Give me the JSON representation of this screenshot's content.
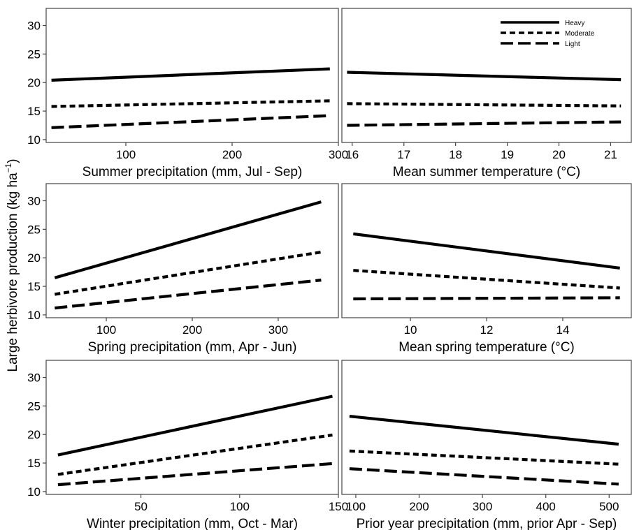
{
  "figure": {
    "ylabel_main": "Large herbivore production (kg ha",
    "ylabel_sup": "−1",
    "ylabel_close": ")"
  },
  "legend": {
    "placement": "top-right",
    "entries": [
      {
        "label": "Heavy",
        "style": "solid"
      },
      {
        "label": "Moderate",
        "style": "dotted"
      },
      {
        "label": "Light",
        "style": "dashed"
      }
    ]
  },
  "chart_data": [
    {
      "type": "line",
      "xlabel": "Summer precipitation (mm, Jul - Sep)",
      "xlim": [
        25,
        300
      ],
      "xticks": [
        100,
        200,
        300
      ],
      "ylim": [
        9.5,
        33
      ],
      "yticks": [
        10,
        15,
        20,
        25,
        30
      ],
      "series": [
        {
          "name": "Heavy",
          "style": "solid",
          "x": [
            30,
            292
          ],
          "y": [
            20.4,
            22.4
          ]
        },
        {
          "name": "Moderate",
          "style": "dotted",
          "x": [
            30,
            292
          ],
          "y": [
            15.8,
            16.8
          ]
        },
        {
          "name": "Light",
          "style": "dashed",
          "x": [
            30,
            292
          ],
          "y": [
            12.1,
            14.2
          ]
        }
      ]
    },
    {
      "type": "line",
      "xlabel": "Mean summer temperature (°C)",
      "xlim": [
        15.8,
        21.4
      ],
      "xticks": [
        16,
        17,
        18,
        19,
        20,
        21
      ],
      "ylim": [
        9.5,
        33
      ],
      "yticks": [
        10,
        15,
        20,
        25,
        30
      ],
      "series": [
        {
          "name": "Heavy",
          "style": "solid",
          "x": [
            15.9,
            21.2
          ],
          "y": [
            21.8,
            20.5
          ]
        },
        {
          "name": "Moderate",
          "style": "dotted",
          "x": [
            15.9,
            21.2
          ],
          "y": [
            16.3,
            15.9
          ]
        },
        {
          "name": "Light",
          "style": "dashed",
          "x": [
            15.9,
            21.2
          ],
          "y": [
            12.5,
            13.1
          ]
        }
      ]
    },
    {
      "type": "line",
      "xlabel": "Spring precipitation (mm, Apr - Jun)",
      "xlim": [
        30,
        370
      ],
      "xticks": [
        100,
        200,
        300
      ],
      "ylim": [
        9.5,
        33
      ],
      "yticks": [
        10,
        15,
        20,
        25,
        30
      ],
      "series": [
        {
          "name": "Heavy",
          "style": "solid",
          "x": [
            40,
            350
          ],
          "y": [
            16.5,
            29.8
          ]
        },
        {
          "name": "Moderate",
          "style": "dotted",
          "x": [
            40,
            350
          ],
          "y": [
            13.6,
            21.0
          ]
        },
        {
          "name": "Light",
          "style": "dashed",
          "x": [
            40,
            350
          ],
          "y": [
            11.2,
            16.1
          ]
        }
      ]
    },
    {
      "type": "line",
      "xlabel": "Mean spring temperature (°C)",
      "xlim": [
        8.2,
        15.8
      ],
      "xticks": [
        10,
        12,
        14
      ],
      "ylim": [
        9.5,
        33
      ],
      "yticks": [
        10,
        15,
        20,
        25,
        30
      ],
      "series": [
        {
          "name": "Heavy",
          "style": "solid",
          "x": [
            8.5,
            15.5
          ],
          "y": [
            24.2,
            18.2
          ]
        },
        {
          "name": "Moderate",
          "style": "dotted",
          "x": [
            8.5,
            15.5
          ],
          "y": [
            17.8,
            14.7
          ]
        },
        {
          "name": "Light",
          "style": "dashed",
          "x": [
            8.5,
            15.5
          ],
          "y": [
            12.8,
            13.0
          ]
        }
      ]
    },
    {
      "type": "line",
      "xlabel": "Winter precipitation (mm, Oct - Mar)",
      "xlim": [
        2,
        150
      ],
      "xticks": [
        50,
        100,
        150
      ],
      "ylim": [
        9.5,
        33
      ],
      "yticks": [
        10,
        15,
        20,
        25,
        30
      ],
      "series": [
        {
          "name": "Heavy",
          "style": "solid",
          "x": [
            8,
            147
          ],
          "y": [
            16.4,
            26.7
          ]
        },
        {
          "name": "Moderate",
          "style": "dotted",
          "x": [
            8,
            147
          ],
          "y": [
            13.0,
            19.9
          ]
        },
        {
          "name": "Light",
          "style": "dashed",
          "x": [
            8,
            147
          ],
          "y": [
            11.2,
            14.9
          ]
        }
      ]
    },
    {
      "type": "line",
      "xlabel": "Prior year precipitation (mm, prior Apr - Sep)",
      "xlim": [
        78,
        535
      ],
      "xticks": [
        100,
        200,
        300,
        400,
        500
      ],
      "ylim": [
        9.5,
        33
      ],
      "yticks": [
        10,
        15,
        20,
        25,
        30
      ],
      "series": [
        {
          "name": "Heavy",
          "style": "solid",
          "x": [
            90,
            515
          ],
          "y": [
            23.2,
            18.3
          ]
        },
        {
          "name": "Moderate",
          "style": "dotted",
          "x": [
            90,
            515
          ],
          "y": [
            17.1,
            14.8
          ]
        },
        {
          "name": "Light",
          "style": "dashed",
          "x": [
            90,
            515
          ],
          "y": [
            14.0,
            11.3
          ]
        }
      ]
    }
  ]
}
